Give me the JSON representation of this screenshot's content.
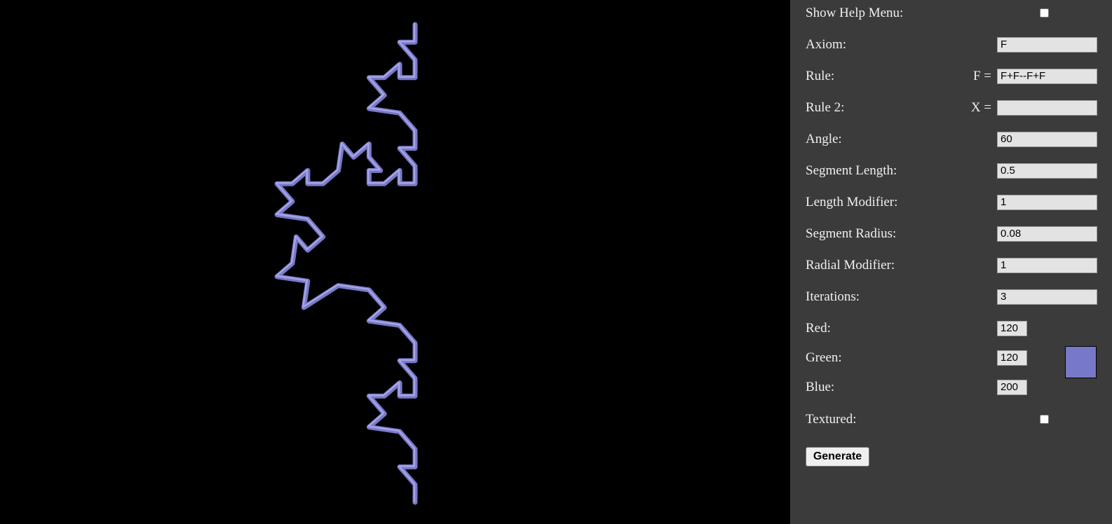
{
  "panel": {
    "help": {
      "label": "Show Help Menu:",
      "checked": false
    },
    "axiom": {
      "label": "Axiom:",
      "value": "F"
    },
    "rule": {
      "label": "Rule:",
      "prefix": "F =",
      "value": "F+F--F+F"
    },
    "rule2": {
      "label": "Rule 2:",
      "prefix": "X =",
      "value": ""
    },
    "angle": {
      "label": "Angle:",
      "value": "60"
    },
    "segment_length": {
      "label": "Segment Length:",
      "value": "0.5"
    },
    "length_modifier": {
      "label": "Length Modifier:",
      "value": "1"
    },
    "segment_radius": {
      "label": "Segment Radius:",
      "value": "0.08"
    },
    "radial_modifier": {
      "label": "Radial Modifier:",
      "value": "1"
    },
    "iterations": {
      "label": "Iterations:",
      "value": "3"
    },
    "red": {
      "label": "Red:",
      "value": "120"
    },
    "green": {
      "label": "Green:",
      "value": "120"
    },
    "blue": {
      "label": "Blue:",
      "value": "200"
    },
    "swatch_color": "#7878c8",
    "textured": {
      "label": "Textured:",
      "checked": false
    },
    "generate_label": "Generate"
  },
  "scene": {
    "background": "#000000",
    "curve_color": "#7878c8",
    "curve_highlight": "#a4a4e6",
    "fractal": "koch",
    "iterations": 3,
    "angle": 60
  }
}
